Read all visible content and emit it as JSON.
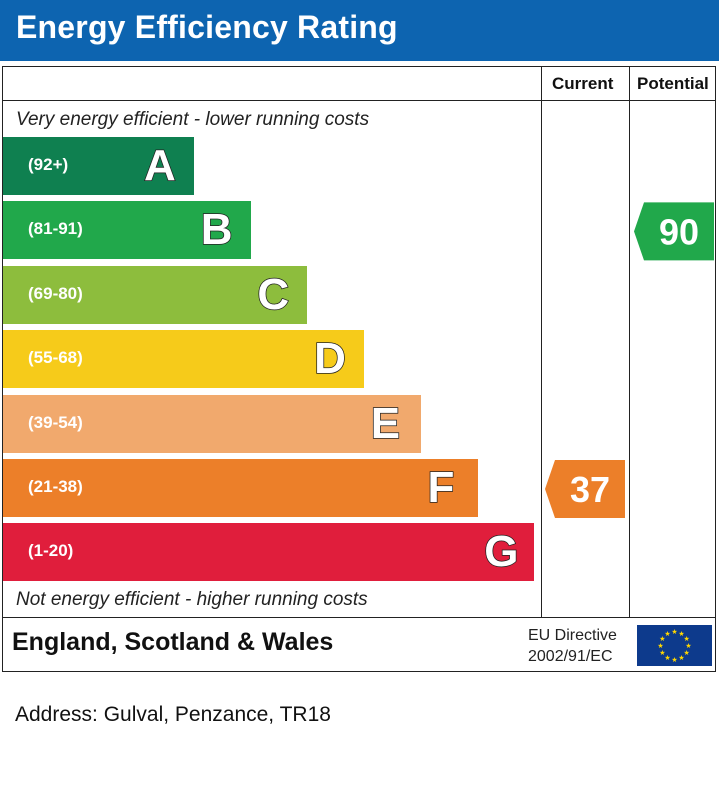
{
  "header": {
    "title": "Energy Efficiency Rating"
  },
  "columns": {
    "current": "Current",
    "potential": "Potential"
  },
  "captions": {
    "top": "Very energy efficient - lower running costs",
    "bottom": "Not energy efficient - higher running costs"
  },
  "chart_data": {
    "type": "bar",
    "title": "Energy Efficiency Rating",
    "categories": [
      "A",
      "B",
      "C",
      "D",
      "E",
      "F",
      "G"
    ],
    "ranges": [
      "(92+)",
      "(81-91)",
      "(69-80)",
      "(55-68)",
      "(39-54)",
      "(21-38)",
      "(1-20)"
    ],
    "colors": [
      "#0f8050",
      "#21a84b",
      "#8dbd3d",
      "#f6cb1a",
      "#f1a96d",
      "#ec7f29",
      "#e01e3c"
    ],
    "current": {
      "value": 37,
      "band": "F",
      "color": "#ec7f29"
    },
    "potential": {
      "value": 90,
      "band": "B",
      "color": "#21a84b"
    }
  },
  "footer": {
    "region": "England, Scotland & Wales",
    "eu_line1": "EU Directive",
    "eu_line2": "2002/91/EC",
    "flag_color": "#0d3a8c",
    "star_color": "#ffd700"
  },
  "address": "Address: Gulval, Penzance, TR18"
}
